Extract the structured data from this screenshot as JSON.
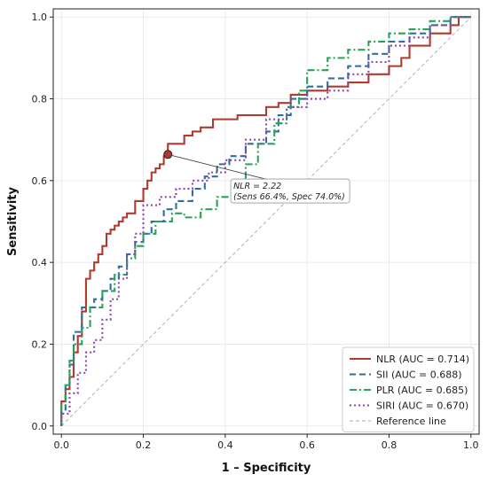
{
  "chart_data": {
    "type": "line",
    "xlabel": "1 – Specificity",
    "ylabel": "Sensitivity",
    "xlim": [
      0.0,
      1.0
    ],
    "ylim": [
      0.0,
      1.0
    ],
    "xticks": [
      "0.0",
      "0.2",
      "0.4",
      "0.6",
      "0.8",
      "1.0"
    ],
    "yticks": [
      "0.0",
      "0.2",
      "0.4",
      "0.6",
      "0.8",
      "1.0"
    ],
    "grid": true,
    "legend_position": "bottom-right",
    "series": [
      {
        "name": "NLR (AUC = 0.714)",
        "color": "#b03a2e",
        "style": "solid",
        "x": [
          0.0,
          0.0,
          0.01,
          0.01,
          0.02,
          0.02,
          0.03,
          0.03,
          0.04,
          0.04,
          0.05,
          0.05,
          0.06,
          0.06,
          0.07,
          0.07,
          0.08,
          0.08,
          0.09,
          0.09,
          0.1,
          0.1,
          0.11,
          0.11,
          0.12,
          0.12,
          0.13,
          0.13,
          0.14,
          0.14,
          0.15,
          0.15,
          0.16,
          0.16,
          0.18,
          0.18,
          0.2,
          0.2,
          0.21,
          0.21,
          0.22,
          0.22,
          0.23,
          0.23,
          0.24,
          0.24,
          0.25,
          0.25,
          0.26,
          0.26,
          0.3,
          0.3,
          0.32,
          0.32,
          0.34,
          0.34,
          0.37,
          0.37,
          0.43,
          0.43,
          0.5,
          0.5,
          0.53,
          0.53,
          0.56,
          0.56,
          0.6,
          0.6,
          0.65,
          0.65,
          0.7,
          0.7,
          0.75,
          0.75,
          0.8,
          0.8,
          0.83,
          0.83,
          0.85,
          0.85,
          0.9,
          0.9,
          0.95,
          0.95,
          0.97,
          0.97,
          1.0
        ],
        "y": [
          0.0,
          0.06,
          0.06,
          0.09,
          0.09,
          0.12,
          0.12,
          0.18,
          0.18,
          0.22,
          0.22,
          0.28,
          0.28,
          0.36,
          0.36,
          0.38,
          0.38,
          0.4,
          0.4,
          0.42,
          0.42,
          0.44,
          0.44,
          0.47,
          0.47,
          0.48,
          0.48,
          0.49,
          0.49,
          0.5,
          0.5,
          0.51,
          0.51,
          0.52,
          0.52,
          0.55,
          0.55,
          0.58,
          0.58,
          0.6,
          0.6,
          0.62,
          0.62,
          0.63,
          0.63,
          0.64,
          0.64,
          0.66,
          0.66,
          0.69,
          0.69,
          0.71,
          0.71,
          0.72,
          0.72,
          0.73,
          0.73,
          0.75,
          0.75,
          0.76,
          0.76,
          0.78,
          0.78,
          0.79,
          0.79,
          0.81,
          0.81,
          0.82,
          0.82,
          0.83,
          0.83,
          0.84,
          0.84,
          0.86,
          0.86,
          0.88,
          0.88,
          0.9,
          0.9,
          0.93,
          0.93,
          0.96,
          0.96,
          0.98,
          0.98,
          1.0,
          1.0
        ]
      },
      {
        "name": "SII (AUC = 0.688)",
        "color": "#2e6da4",
        "style": "dashed",
        "x": [
          0.0,
          0.0,
          0.01,
          0.01,
          0.02,
          0.02,
          0.03,
          0.03,
          0.05,
          0.05,
          0.08,
          0.08,
          0.1,
          0.1,
          0.12,
          0.12,
          0.14,
          0.14,
          0.16,
          0.16,
          0.18,
          0.18,
          0.2,
          0.2,
          0.22,
          0.22,
          0.25,
          0.25,
          0.28,
          0.28,
          0.32,
          0.32,
          0.35,
          0.35,
          0.38,
          0.38,
          0.41,
          0.41,
          0.45,
          0.45,
          0.5,
          0.5,
          0.53,
          0.53,
          0.56,
          0.56,
          0.6,
          0.6,
          0.65,
          0.65,
          0.7,
          0.7,
          0.75,
          0.75,
          0.8,
          0.8,
          0.85,
          0.85,
          0.9,
          0.9,
          0.95,
          0.95,
          1.0
        ],
        "y": [
          0.0,
          0.04,
          0.04,
          0.1,
          0.1,
          0.15,
          0.15,
          0.23,
          0.23,
          0.29,
          0.29,
          0.31,
          0.31,
          0.33,
          0.33,
          0.36,
          0.36,
          0.39,
          0.39,
          0.42,
          0.42,
          0.45,
          0.45,
          0.47,
          0.47,
          0.5,
          0.5,
          0.53,
          0.53,
          0.55,
          0.55,
          0.58,
          0.58,
          0.61,
          0.61,
          0.64,
          0.64,
          0.66,
          0.66,
          0.69,
          0.69,
          0.72,
          0.72,
          0.76,
          0.76,
          0.8,
          0.8,
          0.83,
          0.83,
          0.85,
          0.85,
          0.88,
          0.88,
          0.91,
          0.91,
          0.94,
          0.94,
          0.96,
          0.96,
          0.98,
          0.98,
          1.0,
          1.0
        ]
      },
      {
        "name": "PLR (AUC = 0.685)",
        "color": "#27a35a",
        "style": "dashdot",
        "x": [
          0.0,
          0.0,
          0.01,
          0.01,
          0.02,
          0.02,
          0.03,
          0.03,
          0.05,
          0.05,
          0.07,
          0.07,
          0.1,
          0.1,
          0.13,
          0.13,
          0.16,
          0.16,
          0.18,
          0.18,
          0.2,
          0.2,
          0.23,
          0.23,
          0.27,
          0.27,
          0.3,
          0.3,
          0.34,
          0.34,
          0.38,
          0.38,
          0.42,
          0.42,
          0.45,
          0.45,
          0.48,
          0.48,
          0.52,
          0.52,
          0.55,
          0.55,
          0.58,
          0.58,
          0.6,
          0.6,
          0.65,
          0.65,
          0.7,
          0.7,
          0.75,
          0.75,
          0.8,
          0.8,
          0.85,
          0.85,
          0.9,
          0.9,
          0.95,
          0.95,
          1.0
        ],
        "y": [
          0.0,
          0.05,
          0.05,
          0.1,
          0.1,
          0.16,
          0.16,
          0.2,
          0.2,
          0.24,
          0.24,
          0.29,
          0.29,
          0.33,
          0.33,
          0.37,
          0.37,
          0.41,
          0.41,
          0.44,
          0.44,
          0.47,
          0.47,
          0.5,
          0.5,
          0.52,
          0.52,
          0.51,
          0.51,
          0.53,
          0.53,
          0.56,
          0.56,
          0.6,
          0.6,
          0.64,
          0.64,
          0.69,
          0.69,
          0.74,
          0.74,
          0.78,
          0.78,
          0.82,
          0.82,
          0.87,
          0.87,
          0.9,
          0.9,
          0.92,
          0.92,
          0.94,
          0.94,
          0.96,
          0.96,
          0.97,
          0.97,
          0.99,
          0.99,
          1.0,
          1.0
        ]
      },
      {
        "name": "SIRI (AUC = 0.670)",
        "color": "#8e44ad",
        "style": "dotted",
        "x": [
          0.0,
          0.0,
          0.02,
          0.02,
          0.04,
          0.04,
          0.06,
          0.06,
          0.08,
          0.08,
          0.1,
          0.1,
          0.12,
          0.12,
          0.14,
          0.14,
          0.16,
          0.16,
          0.18,
          0.18,
          0.2,
          0.2,
          0.24,
          0.24,
          0.28,
          0.28,
          0.32,
          0.32,
          0.36,
          0.36,
          0.4,
          0.4,
          0.45,
          0.45,
          0.5,
          0.5,
          0.55,
          0.55,
          0.6,
          0.6,
          0.65,
          0.65,
          0.7,
          0.7,
          0.75,
          0.75,
          0.8,
          0.8,
          0.85,
          0.85,
          0.9,
          0.9,
          0.95,
          0.95,
          1.0
        ],
        "y": [
          0.0,
          0.03,
          0.03,
          0.08,
          0.08,
          0.13,
          0.13,
          0.18,
          0.18,
          0.21,
          0.21,
          0.26,
          0.26,
          0.31,
          0.31,
          0.36,
          0.36,
          0.42,
          0.42,
          0.47,
          0.47,
          0.54,
          0.54,
          0.56,
          0.56,
          0.58,
          0.58,
          0.6,
          0.6,
          0.62,
          0.62,
          0.65,
          0.65,
          0.7,
          0.7,
          0.75,
          0.75,
          0.78,
          0.78,
          0.8,
          0.8,
          0.82,
          0.82,
          0.86,
          0.86,
          0.89,
          0.89,
          0.93,
          0.93,
          0.95,
          0.95,
          0.98,
          0.98,
          1.0,
          1.0
        ]
      },
      {
        "name": "Reference line",
        "color": "#aaaaaa",
        "style": "thin-dashed",
        "x": [
          0.0,
          1.0
        ],
        "y": [
          0.0,
          1.0
        ]
      }
    ],
    "annotation": {
      "point_x": 0.26,
      "point_y": 0.664,
      "text_x": 0.42,
      "text_y": 0.58,
      "line1": "NLR = 2.22",
      "line2": "(Sens 66.4%, Spec 74.0%)"
    }
  }
}
